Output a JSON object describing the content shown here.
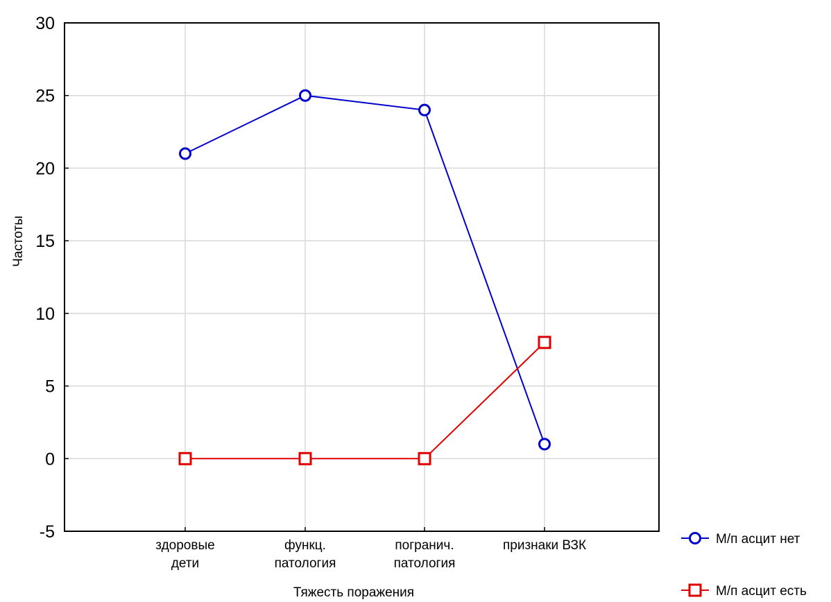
{
  "chart_data": {
    "type": "line",
    "title": "",
    "xlabel": "Тяжесть поражения",
    "ylabel": "Частоты",
    "categories": [
      [
        "здоровые",
        "дети"
      ],
      [
        "функц.",
        "патология"
      ],
      [
        "погранич.",
        "патология"
      ],
      [
        "признаки ВЗК"
      ]
    ],
    "ylim": [
      -5,
      30
    ],
    "yticks": [
      -5,
      0,
      5,
      10,
      15,
      20,
      25,
      30
    ],
    "grid": true,
    "legend_position": "bottom-right",
    "series": [
      {
        "name": "М/п асцит нет",
        "values": [
          21,
          25,
          24,
          1
        ],
        "color": "#0000cc",
        "marker": "circle"
      },
      {
        "name": "М/п асцит есть",
        "values": [
          0,
          0,
          0,
          8
        ],
        "color": "#e00000",
        "marker": "square"
      }
    ]
  }
}
